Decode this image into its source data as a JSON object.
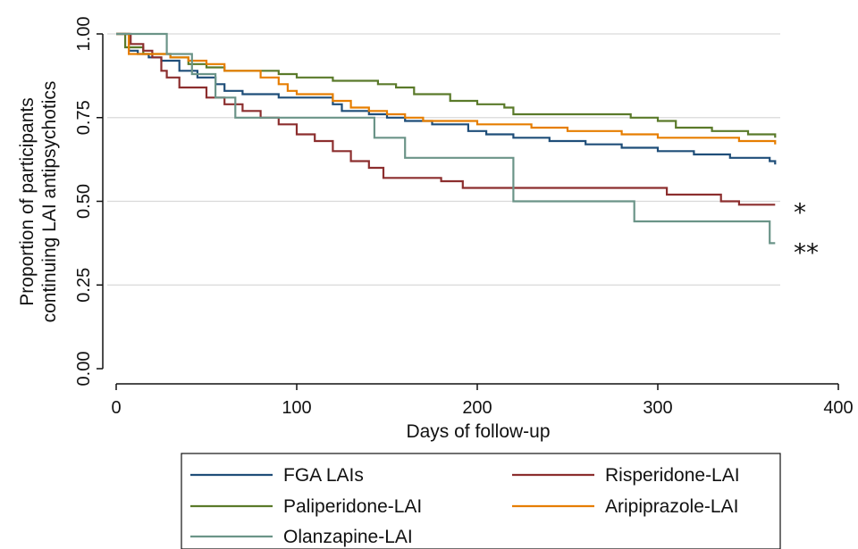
{
  "chart_data": {
    "type": "line",
    "step": true,
    "xlabel": "Days of follow-up",
    "ylabel_lines": [
      "Proportion of participants",
      "continuing LAI antipsychotics"
    ],
    "xlim": [
      0,
      400
    ],
    "ylim": [
      0,
      1
    ],
    "xticks": [
      "0",
      "100",
      "200",
      "300",
      "400"
    ],
    "xtick_values": [
      0,
      100,
      200,
      300,
      400
    ],
    "yticks": [
      "0.00",
      "0.25",
      "0.50",
      "0.75",
      "1.00"
    ],
    "ytick_values": [
      0,
      0.25,
      0.5,
      0.75,
      1.0
    ],
    "grid": "horizontal",
    "legend_position": "bottom",
    "annotations": [
      {
        "text": "*",
        "series": "Risperidone-LAI",
        "x": 380,
        "y": 0.49
      },
      {
        "text": "**",
        "series": "Olanzapine-LAI",
        "x": 380,
        "y": 0.37
      }
    ],
    "series": [
      {
        "name": "FGA LAIs",
        "color": "#1f4e79",
        "x": [
          0,
          7,
          12,
          18,
          25,
          35,
          45,
          55,
          60,
          70,
          90,
          100,
          120,
          125,
          140,
          150,
          160,
          175,
          195,
          205,
          220,
          240,
          260,
          280,
          300,
          320,
          340,
          355,
          362,
          365
        ],
        "y": [
          1.0,
          0.95,
          0.94,
          0.93,
          0.92,
          0.89,
          0.87,
          0.85,
          0.83,
          0.82,
          0.81,
          0.81,
          0.79,
          0.77,
          0.76,
          0.75,
          0.74,
          0.73,
          0.71,
          0.7,
          0.69,
          0.68,
          0.67,
          0.66,
          0.65,
          0.64,
          0.63,
          0.63,
          0.62,
          0.61
        ]
      },
      {
        "name": "Paliperidone-LAI",
        "color": "#5a7a2a",
        "x": [
          0,
          5,
          15,
          30,
          40,
          50,
          60,
          90,
          100,
          115,
          120,
          145,
          155,
          165,
          185,
          200,
          215,
          220,
          270,
          285,
          300,
          310,
          330,
          350,
          365
        ],
        "y": [
          1.0,
          0.96,
          0.94,
          0.93,
          0.91,
          0.9,
          0.89,
          0.88,
          0.87,
          0.87,
          0.86,
          0.85,
          0.84,
          0.82,
          0.8,
          0.79,
          0.78,
          0.76,
          0.76,
          0.75,
          0.74,
          0.72,
          0.71,
          0.7,
          0.69
        ]
      },
      {
        "name": "Risperidone-LAI",
        "color": "#8c2e2e",
        "x": [
          0,
          8,
          15,
          20,
          25,
          28,
          35,
          50,
          60,
          70,
          80,
          90,
          100,
          110,
          120,
          130,
          140,
          148,
          160,
          180,
          192,
          220,
          280,
          300,
          305,
          335,
          345,
          365
        ],
        "y": [
          1.0,
          0.97,
          0.95,
          0.93,
          0.89,
          0.87,
          0.84,
          0.81,
          0.79,
          0.77,
          0.75,
          0.73,
          0.7,
          0.68,
          0.65,
          0.62,
          0.6,
          0.57,
          0.57,
          0.56,
          0.54,
          0.54,
          0.54,
          0.54,
          0.52,
          0.5,
          0.49,
          0.49
        ]
      },
      {
        "name": "Aripiprazole-LAI",
        "color": "#e67e00",
        "x": [
          0,
          7,
          20,
          30,
          40,
          50,
          60,
          80,
          90,
          95,
          100,
          120,
          130,
          140,
          150,
          160,
          170,
          182,
          200,
          230,
          250,
          280,
          300,
          330,
          345,
          365
        ],
        "y": [
          1.0,
          0.94,
          0.94,
          0.93,
          0.92,
          0.91,
          0.89,
          0.87,
          0.85,
          0.83,
          0.82,
          0.8,
          0.78,
          0.77,
          0.76,
          0.75,
          0.74,
          0.74,
          0.73,
          0.72,
          0.71,
          0.7,
          0.69,
          0.69,
          0.68,
          0.67
        ]
      },
      {
        "name": "Olanzapine-LAI",
        "color": "#6b9488",
        "x": [
          0,
          28,
          42,
          55,
          66,
          143,
          160,
          220,
          287,
          362,
          365
        ],
        "y": [
          1.0,
          0.94,
          0.88,
          0.81,
          0.75,
          0.69,
          0.63,
          0.5,
          0.44,
          0.375,
          0.375
        ]
      }
    ]
  }
}
